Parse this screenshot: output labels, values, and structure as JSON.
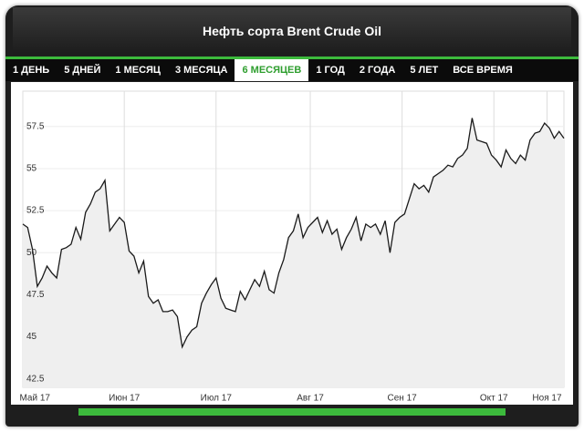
{
  "widget": {
    "title": "Нефть сорта Brent Crude Oil",
    "tabs": [
      "1 ДЕНЬ",
      "5 ДНЕЙ",
      "1 МЕСЯЦ",
      "3 МЕСЯЦА",
      "6 МЕСЯЦЕВ",
      "1 ГОД",
      "2 ГОДА",
      "5 ЛЕТ",
      "ВСЕ ВРЕМЯ"
    ],
    "active_tab": 4
  },
  "chart_data": {
    "type": "line",
    "color": "#1a1a1a",
    "values": [
      51.7,
      51.5,
      50.2,
      48.0,
      48.5,
      49.2,
      48.8,
      48.5,
      50.2,
      50.3,
      50.5,
      51.5,
      50.8,
      52.4,
      52.9,
      53.6,
      53.8,
      54.3,
      51.3,
      51.7,
      52.1,
      51.8,
      50.1,
      49.8,
      48.8,
      49.5,
      47.4,
      47.0,
      47.2,
      46.5,
      46.5,
      46.6,
      46.2,
      44.4,
      45.0,
      45.4,
      45.6,
      47.0,
      47.6,
      48.1,
      48.5,
      47.3,
      46.7,
      46.6,
      46.5,
      47.7,
      47.2,
      47.8,
      48.4,
      48.0,
      48.9,
      47.8,
      47.6,
      48.8,
      49.6,
      50.9,
      51.3,
      52.3,
      50.9,
      51.5,
      51.8,
      52.1,
      51.2,
      51.9,
      51.1,
      51.4,
      50.2,
      50.9,
      51.4,
      52.1,
      50.7,
      51.7,
      51.5,
      51.7,
      51.1,
      51.9,
      50.0,
      51.8,
      52.1,
      52.3,
      53.2,
      54.1,
      53.8,
      54.0,
      53.6,
      54.5,
      54.7,
      54.9,
      55.2,
      55.1,
      55.6,
      55.8,
      56.2,
      58.0,
      56.7,
      56.6,
      56.5,
      55.8,
      55.5,
      55.1,
      56.1,
      55.6,
      55.3,
      55.8,
      55.5,
      56.7,
      57.1,
      57.2,
      57.7,
      57.4,
      56.8,
      57.2,
      56.8
    ],
    "xlim": [
      0,
      112
    ],
    "xticks": [
      {
        "value": 2.5,
        "label": "Май 17"
      },
      {
        "value": 21,
        "label": "Июн 17"
      },
      {
        "value": 40,
        "label": "Июл 17"
      },
      {
        "value": 59.5,
        "label": "Авг 17"
      },
      {
        "value": 78.5,
        "label": "Сен 17"
      },
      {
        "value": 97.5,
        "label": "Окт 17"
      },
      {
        "value": 108.5,
        "label": "Ноя 17"
      }
    ],
    "ylim": [
      42,
      59.6
    ],
    "yticks": [
      42.5,
      45,
      47.5,
      50,
      52.5,
      55,
      57.5
    ],
    "grid": true
  }
}
